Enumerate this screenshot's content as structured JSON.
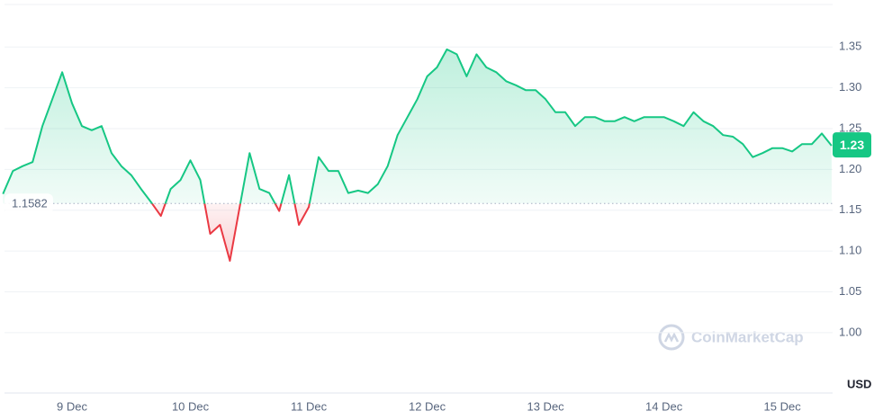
{
  "chart_data": {
    "type": "line",
    "categories": [
      null,
      null,
      null,
      null,
      null,
      null,
      null,
      "9 Dec",
      null,
      null,
      null,
      null,
      null,
      null,
      null,
      null,
      null,
      null,
      null,
      "10 Dec",
      null,
      null,
      null,
      null,
      null,
      null,
      null,
      null,
      null,
      null,
      null,
      "11 Dec",
      null,
      null,
      null,
      null,
      null,
      null,
      null,
      null,
      null,
      null,
      null,
      "12 Dec",
      null,
      null,
      null,
      null,
      null,
      null,
      null,
      null,
      null,
      null,
      null,
      "13 Dec",
      null,
      null,
      null,
      null,
      null,
      null,
      null,
      null,
      null,
      null,
      null,
      "14 Dec",
      null,
      null,
      null,
      null,
      null,
      null,
      null,
      null,
      null,
      null,
      null,
      "15 Dec",
      null,
      null,
      null,
      null,
      null
    ],
    "values": [
      1.17,
      1.198,
      1.204,
      1.209,
      1.253,
      1.286,
      1.319,
      1.281,
      1.253,
      1.248,
      1.253,
      1.22,
      1.204,
      1.193,
      1.176,
      1.16,
      1.143,
      1.176,
      1.187,
      1.211,
      1.187,
      1.121,
      1.132,
      1.088,
      1.154,
      1.22,
      1.176,
      1.171,
      1.149,
      1.193,
      1.132,
      1.154,
      1.215,
      1.198,
      1.198,
      1.171,
      1.174,
      1.171,
      1.182,
      1.204,
      1.242,
      1.264,
      1.286,
      1.314,
      1.325,
      1.347,
      1.341,
      1.314,
      1.341,
      1.325,
      1.319,
      1.308,
      1.303,
      1.297,
      1.297,
      1.286,
      1.27,
      1.27,
      1.253,
      1.264,
      1.264,
      1.259,
      1.259,
      1.264,
      1.259,
      1.264,
      1.264,
      1.264,
      1.259,
      1.253,
      1.27,
      1.259,
      1.253,
      1.242,
      1.24,
      1.231,
      1.215,
      1.22,
      1.226,
      1.226,
      1.222,
      1.231,
      1.231,
      1.244,
      1.229
    ],
    "up_color": "#16c784",
    "down_color": "#ea3943",
    "baseline": 1.1582,
    "current_price": 1.23,
    "ylim": [
      0.926,
      1.402
    ],
    "yticks": [
      {
        "value": 1,
        "label": "1.00"
      },
      1.05,
      {
        "value": 1.1,
        "label": "1.10"
      },
      1.15,
      {
        "value": 1.2,
        "label": "1.20"
      },
      1.25,
      {
        "value": 1.3,
        "label": "1.30"
      },
      1.35
    ],
    "y_unit": "USD",
    "watermark": "CoinMarketCap",
    "grid": true
  }
}
